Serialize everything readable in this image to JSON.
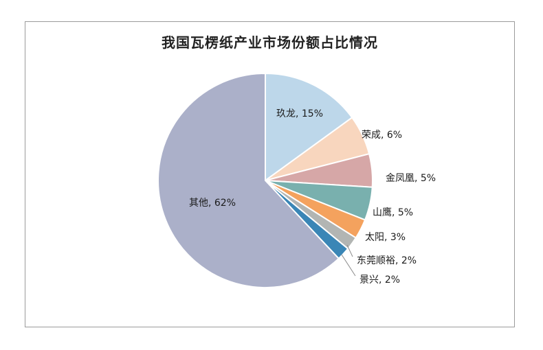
{
  "chart_data": {
    "type": "pie",
    "title": "我国瓦楞纸产业市场份额占比情况",
    "slices": [
      {
        "name": "玖龙",
        "value": 15,
        "label": "玖龙, 15%",
        "color": "#BDD7EA"
      },
      {
        "name": "荣成",
        "value": 6,
        "label": "荣成, 6%",
        "color": "#F8D6BE"
      },
      {
        "name": "金凤凰",
        "value": 5,
        "label": "金凤凰, 5%",
        "color": "#D6A7A7"
      },
      {
        "name": "山鹰",
        "value": 5,
        "label": "山鹰, 5%",
        "color": "#79B0AE"
      },
      {
        "name": "太阳",
        "value": 3,
        "label": "太阳, 3%",
        "color": "#F4A25E"
      },
      {
        "name": "东莞顺裕",
        "value": 2,
        "label": "东莞顺裕, 2%",
        "color": "#B2B5B3"
      },
      {
        "name": "景兴",
        "value": 2,
        "label": "景兴, 2%",
        "color": "#3A86B6"
      },
      {
        "name": "其他",
        "value": 62,
        "label": "其他, 62%",
        "color": "#ABB0C9"
      }
    ],
    "start_angle": "12 o'clock",
    "direction": "clockwise",
    "legend": "none",
    "data_labels": true
  }
}
